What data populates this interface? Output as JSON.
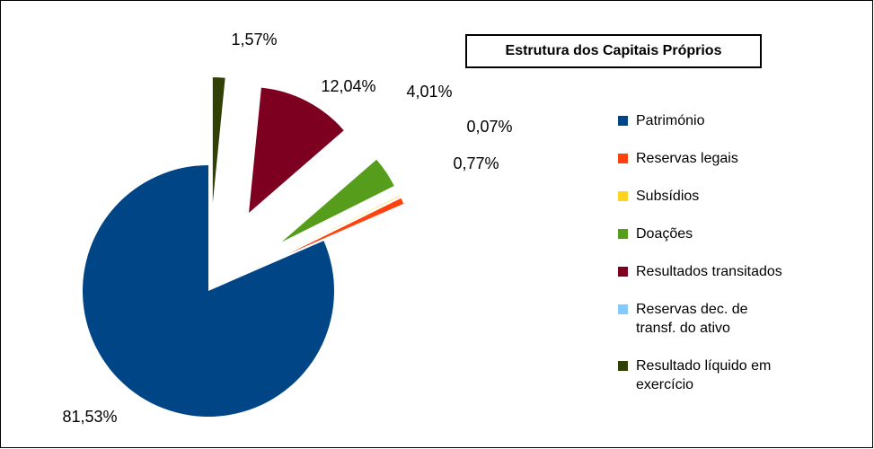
{
  "chart_data": {
    "type": "pie",
    "title": "Estrutura dos Capitais Próprios",
    "categories": [
      "Património",
      "Reservas legais",
      "Subsídios",
      "Doações",
      "Resultados transitados",
      "Reservas dec. de transf. do ativo",
      "Resultado líquido em exercício"
    ],
    "values": [
      81.53,
      0.77,
      0.07,
      4.01,
      12.04,
      0.01,
      1.57
    ],
    "value_labels": [
      "81,53%",
      "0,77%",
      "0,07%",
      "4,01%",
      "12,04%",
      null,
      "1,57%"
    ],
    "colors": [
      "#004586",
      "#ff420e",
      "#ffd320",
      "#579d1c",
      "#7e0021",
      "#83caff",
      "#314004"
    ],
    "exploded": true,
    "legend": "right"
  }
}
